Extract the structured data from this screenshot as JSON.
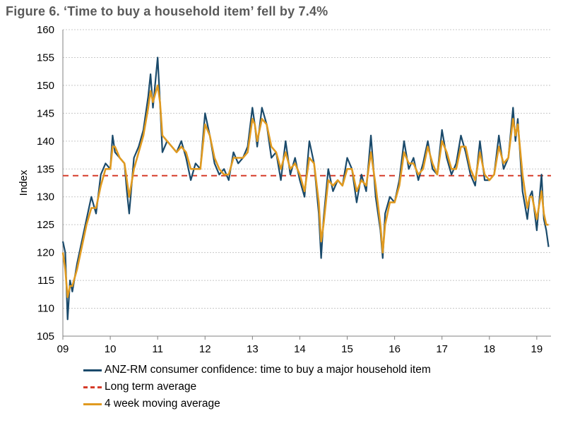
{
  "figure": {
    "title": "Figure 6.  ‘Time to buy a household item’ fell by 7.4%"
  },
  "colors": {
    "confidence": "#1a4a6b",
    "long_term": "#d63c2a",
    "moving_avg": "#e09a20",
    "grid": "#c8c8c8"
  },
  "chart_data": {
    "type": "line",
    "title": "‘Time to buy a household item’ fell by 7.4%",
    "xlabel": "",
    "ylabel": "Index",
    "ylim": [
      105,
      160
    ],
    "yticks": [
      105,
      110,
      115,
      120,
      125,
      130,
      135,
      140,
      145,
      150,
      155,
      160
    ],
    "xlim": [
      2009.0,
      2019.3
    ],
    "xtick_values": [
      2009,
      2010,
      2011,
      2012,
      2013,
      2014,
      2015,
      2016,
      2017,
      2018,
      2019
    ],
    "xtick_labels": [
      "09",
      "10",
      "11",
      "12",
      "13",
      "14",
      "15",
      "16",
      "17",
      "18",
      "19"
    ],
    "grid": "horizontal",
    "legend_position": "bottom",
    "series": [
      {
        "name": "ANZ-RM consumer confidence: time to buy a major household item",
        "style": "solid",
        "x": [
          2009.0,
          2009.05,
          2009.1,
          2009.15,
          2009.2,
          2009.3,
          2009.4,
          2009.5,
          2009.6,
          2009.7,
          2009.8,
          2009.9,
          2010.0,
          2010.05,
          2010.1,
          2010.2,
          2010.3,
          2010.35,
          2010.4,
          2010.5,
          2010.6,
          2010.7,
          2010.8,
          2010.85,
          2010.9,
          2011.0,
          2011.05,
          2011.1,
          2011.2,
          2011.3,
          2011.4,
          2011.5,
          2011.6,
          2011.7,
          2011.8,
          2011.9,
          2012.0,
          2012.1,
          2012.2,
          2012.3,
          2012.4,
          2012.5,
          2012.6,
          2012.7,
          2012.8,
          2012.9,
          2013.0,
          2013.05,
          2013.1,
          2013.2,
          2013.3,
          2013.4,
          2013.5,
          2013.6,
          2013.7,
          2013.8,
          2013.9,
          2014.0,
          2014.1,
          2014.2,
          2014.3,
          2014.4,
          2014.45,
          2014.5,
          2014.6,
          2014.7,
          2014.8,
          2014.9,
          2015.0,
          2015.1,
          2015.2,
          2015.3,
          2015.4,
          2015.5,
          2015.6,
          2015.7,
          2015.75,
          2015.8,
          2015.9,
          2016.0,
          2016.1,
          2016.2,
          2016.3,
          2016.4,
          2016.5,
          2016.6,
          2016.7,
          2016.8,
          2016.9,
          2017.0,
          2017.1,
          2017.2,
          2017.3,
          2017.4,
          2017.5,
          2017.6,
          2017.7,
          2017.8,
          2017.9,
          2018.0,
          2018.1,
          2018.2,
          2018.3,
          2018.4,
          2018.5,
          2018.55,
          2018.6,
          2018.7,
          2018.8,
          2018.85,
          2018.9,
          2019.0,
          2019.1,
          2019.15,
          2019.2,
          2019.25
        ],
        "values": [
          122,
          120,
          108,
          115,
          113,
          118,
          122,
          126,
          130,
          127,
          134,
          136,
          135,
          141,
          138,
          137,
          136,
          131,
          127,
          137,
          139,
          142,
          148,
          152,
          146,
          155,
          147,
          138,
          140,
          139,
          138,
          140,
          137,
          133,
          136,
          135,
          145,
          141,
          136,
          134,
          135,
          133,
          138,
          136,
          137,
          139,
          146,
          143,
          139,
          146,
          143,
          137,
          138,
          133,
          140,
          134,
          137,
          133,
          130,
          140,
          136,
          127,
          119,
          126,
          135,
          131,
          133,
          132,
          137,
          135,
          129,
          134,
          131,
          141,
          130,
          124,
          119,
          127,
          130,
          129,
          133,
          140,
          135,
          137,
          133,
          136,
          140,
          135,
          134,
          142,
          137,
          134,
          136,
          141,
          138,
          134,
          132,
          140,
          133,
          133,
          134,
          141,
          135,
          137,
          146,
          140,
          144,
          131,
          126,
          130,
          131,
          124,
          134,
          126,
          124,
          121
        ]
      },
      {
        "name": "Long term average",
        "style": "dashed",
        "values": [
          133.8,
          133.8
        ]
      },
      {
        "name": "4 week moving average",
        "style": "solid",
        "x": [
          2009.0,
          2009.05,
          2009.1,
          2009.15,
          2009.2,
          2009.3,
          2009.4,
          2009.5,
          2009.6,
          2009.7,
          2009.8,
          2009.9,
          2010.0,
          2010.05,
          2010.1,
          2010.2,
          2010.3,
          2010.35,
          2010.4,
          2010.5,
          2010.6,
          2010.7,
          2010.8,
          2010.85,
          2010.9,
          2011.0,
          2011.05,
          2011.1,
          2011.2,
          2011.3,
          2011.4,
          2011.5,
          2011.6,
          2011.7,
          2011.8,
          2011.9,
          2012.0,
          2012.1,
          2012.2,
          2012.3,
          2012.4,
          2012.5,
          2012.6,
          2012.7,
          2012.8,
          2012.9,
          2013.0,
          2013.05,
          2013.1,
          2013.2,
          2013.3,
          2013.4,
          2013.5,
          2013.6,
          2013.7,
          2013.8,
          2013.9,
          2014.0,
          2014.1,
          2014.2,
          2014.3,
          2014.4,
          2014.45,
          2014.5,
          2014.6,
          2014.7,
          2014.8,
          2014.9,
          2015.0,
          2015.1,
          2015.2,
          2015.3,
          2015.4,
          2015.5,
          2015.6,
          2015.7,
          2015.75,
          2015.8,
          2015.9,
          2016.0,
          2016.1,
          2016.2,
          2016.3,
          2016.4,
          2016.5,
          2016.6,
          2016.7,
          2016.8,
          2016.9,
          2017.0,
          2017.1,
          2017.2,
          2017.3,
          2017.4,
          2017.5,
          2017.6,
          2017.7,
          2017.8,
          2017.9,
          2018.0,
          2018.1,
          2018.2,
          2018.3,
          2018.4,
          2018.5,
          2018.55,
          2018.6,
          2018.7,
          2018.8,
          2018.85,
          2018.9,
          2019.0,
          2019.1,
          2019.15,
          2019.2,
          2019.25
        ],
        "values": [
          120,
          117,
          112,
          114,
          114,
          117,
          121,
          125,
          128,
          128,
          132,
          135,
          135,
          139,
          139,
          137,
          136,
          133,
          130,
          135,
          138,
          141,
          146,
          149,
          147,
          150,
          147,
          141,
          140,
          139,
          138,
          139,
          138,
          135,
          135,
          135,
          143,
          141,
          137,
          135,
          134,
          134,
          137,
          137,
          137,
          138,
          144,
          143,
          140,
          144,
          143,
          139,
          138,
          135,
          138,
          135,
          136,
          134,
          131,
          137,
          136,
          129,
          122,
          125,
          133,
          132,
          133,
          132,
          135,
          135,
          131,
          133,
          132,
          138,
          132,
          125,
          120,
          125,
          129,
          129,
          132,
          138,
          136,
          136,
          134,
          135,
          139,
          136,
          134,
          140,
          138,
          135,
          135,
          139,
          139,
          135,
          133,
          138,
          134,
          133,
          134,
          139,
          136,
          137,
          144,
          141,
          143,
          134,
          128,
          130,
          130,
          126,
          131,
          127,
          125,
          125
        ]
      }
    ]
  },
  "legend": {
    "items": [
      "ANZ-RM consumer confidence: time to buy a major household item",
      "Long term average",
      "4 week moving average"
    ]
  }
}
